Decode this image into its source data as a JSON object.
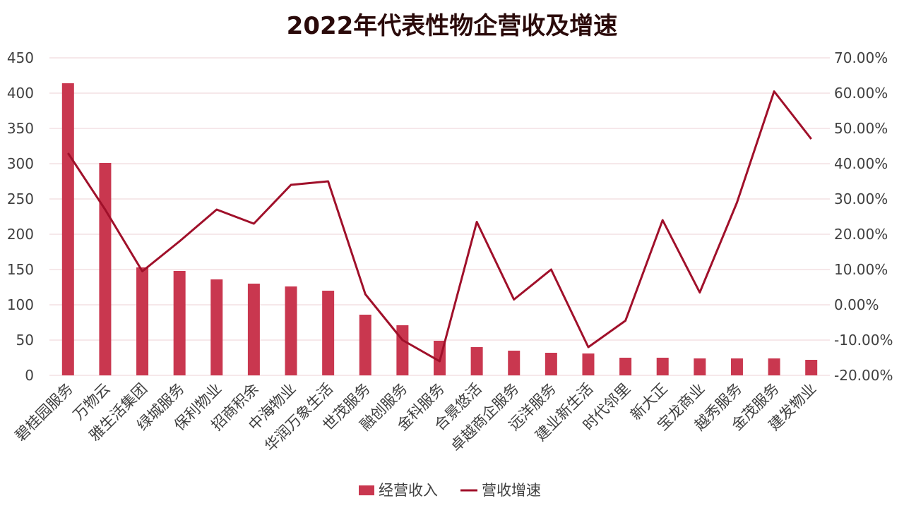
{
  "chart_data": {
    "type": "bar+line",
    "title": "2022年代表性物企营收及增速",
    "categories": [
      "碧桂园服务",
      "万物云",
      "雅生活集团",
      "绿城服务",
      "保利物业",
      "招商积余",
      "中海物业",
      "华润万象生活",
      "世茂服务",
      "融创服务",
      "金科服务",
      "合景悠活",
      "卓越商企服务",
      "远洋服务",
      "建业新生活",
      "时代邻里",
      "新大正",
      "宝龙商业",
      "越秀服务",
      "金茂服务",
      "建发物业"
    ],
    "series": [
      {
        "name": "经营收入",
        "type": "bar",
        "axis": "left",
        "color": "#c9374f",
        "values": [
          414,
          301,
          153,
          148,
          136,
          130,
          126,
          120,
          86,
          71,
          49,
          40,
          35,
          32,
          31,
          25,
          25,
          24,
          24,
          24,
          22
        ]
      },
      {
        "name": "营收增速",
        "type": "line",
        "axis": "right",
        "color": "#a0102a",
        "values": [
          0.43,
          0.27,
          0.095,
          0.18,
          0.27,
          0.23,
          0.34,
          0.35,
          0.03,
          -0.1,
          -0.16,
          0.235,
          0.015,
          0.1,
          -0.12,
          -0.045,
          0.24,
          0.035,
          0.29,
          0.605,
          0.47
        ]
      }
    ],
    "y_left": {
      "min": 0,
      "max": 450,
      "step": 50,
      "ticks": [
        "0",
        "50",
        "100",
        "150",
        "200",
        "250",
        "300",
        "350",
        "400",
        "450"
      ]
    },
    "y_right": {
      "min": -0.2,
      "max": 0.7,
      "step": 0.1,
      "ticks": [
        "-20.00%",
        "-10.00%",
        "0.00%",
        "10.00%",
        "20.00%",
        "30.00%",
        "40.00%",
        "50.00%",
        "60.00%",
        "70.00%"
      ]
    },
    "grid": true,
    "legend_position": "bottom-center"
  },
  "colors": {
    "bar": "#c9374f",
    "line": "#a0102a",
    "grid": "#eed2d6",
    "title": "#2a0a0a",
    "text": "#404040"
  }
}
